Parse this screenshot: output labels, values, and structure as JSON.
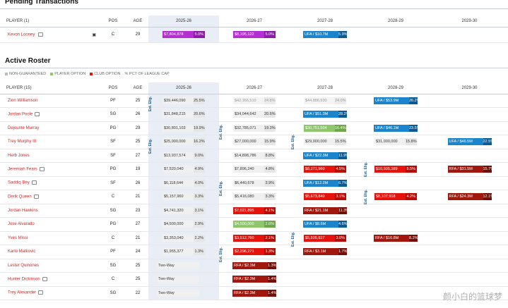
{
  "pending": {
    "title": "Pending Transactions",
    "headers": {
      "player": "PLAYER (1)",
      "pos": "POS",
      "age": "AGE",
      "y1": "2025-26",
      "y2": "2026-27",
      "y3": "2027-28",
      "y4": "2028-29",
      "y5": "2029-30"
    },
    "row": {
      "name": "Kevon Looney",
      "pos": "C",
      "age": "29",
      "y1": {
        "amt": "$7,804,878",
        "pct": "5.0%"
      },
      "y2": {
        "amt": "$8,195,122",
        "pct": "5.0%"
      },
      "y3": {
        "amt": "UFA / $10.7M",
        "pct": "5.9%"
      }
    }
  },
  "roster": {
    "title": "Active Roster",
    "legend": {
      "non_guaranteed": "NON-GUARANTEED",
      "player_option": "PLAYER OPTION",
      "club_option": "CLUB OPTION",
      "pct": "% PCT OF LEAGUE CAP"
    },
    "headers": {
      "player": "PLAYER (15)",
      "pos": "POS",
      "age": "AGE",
      "y1": "2025-26",
      "y2": "2026-27",
      "y3": "2027-28",
      "y4": "2028-29",
      "y5": "2029-30"
    },
    "ext_label": "Ext. Elig.",
    "rows": [
      {
        "name": "Zion Williamson",
        "icon": false,
        "pos": "PF",
        "age": "25",
        "y1": {
          "amt": "$39,446,090",
          "pct": "25.5%",
          "style": "gray"
        },
        "y2": {
          "amt": "$42,166,510",
          "pct": "24.8%",
          "style": "muted"
        },
        "y3": {
          "amt": "$44,886,930",
          "pct": "24.0%",
          "style": "muted"
        },
        "y4": {
          "amt": "UFA / $53.9M",
          "pct": "26.2%",
          "style": "blue"
        },
        "y5": null
      },
      {
        "name": "Jordan Poole",
        "icon": true,
        "pos": "SG",
        "age": "26",
        "y1": {
          "amt": "$31,848,215",
          "pct": "20.6%",
          "style": "gray"
        },
        "y2": {
          "amt": "$34,044,642",
          "pct": "20.6%",
          "style": "gray"
        },
        "y3": {
          "amt": "UFA / $51.3M",
          "pct": "28.2%",
          "style": "blue"
        },
        "y4": null,
        "y5": null
      },
      {
        "name": "Dejounte Murray",
        "icon": false,
        "pos": "PG",
        "age": "29",
        "y1": {
          "amt": "$30,801,103",
          "pct": "19.9%",
          "style": "gray"
        },
        "y2": {
          "amt": "$32,785,071",
          "pct": "19.3%",
          "style": "gray"
        },
        "y3": {
          "amt": "$30,751,504",
          "pct": "16.4%",
          "style": "green"
        },
        "y4": {
          "amt": "UFA / $46.1M",
          "pct": "23.5%",
          "style": "blue"
        },
        "y5": null
      },
      {
        "name": "Trey Murphy III",
        "icon": false,
        "pos": "SF",
        "age": "25",
        "y1": {
          "amt": "$25,000,000",
          "pct": "16.2%",
          "style": "gray"
        },
        "y2": {
          "amt": "$27,000,000",
          "pct": "15.9%",
          "style": "gray"
        },
        "y3": {
          "amt": "$29,000,000",
          "pct": "15.5%",
          "style": "gray"
        },
        "y4": {
          "amt": "$31,000,000",
          "pct": "15.8%",
          "style": "gray"
        },
        "y5": {
          "amt": "UFA / $46.5M",
          "pct": "22.5%",
          "style": "blue"
        }
      },
      {
        "name": "Herb Jones",
        "icon": false,
        "pos": "SF",
        "age": "27",
        "y1": {
          "amt": "$13,937,574",
          "pct": "9.0%",
          "style": "gray"
        },
        "y2": {
          "amt": "$14,898,786",
          "pct": "8.8%",
          "style": "gray"
        },
        "y3": {
          "amt": "UFA / $22.3M",
          "pct": "11.9%",
          "style": "blue"
        },
        "y4": null,
        "y5": null
      },
      {
        "name": "Jeremiah Fears",
        "icon": true,
        "pos": "PG",
        "age": "19",
        "y1": {
          "amt": "$7,520,040",
          "pct": "4.9%",
          "style": "gray"
        },
        "y2": {
          "amt": "$7,896,240",
          "pct": "4.8%",
          "style": "gray"
        },
        "y3": {
          "amt": "$8,271,960",
          "pct": "4.5%",
          "style": "red"
        },
        "y4": {
          "amt": "$10,505,389",
          "pct": "5.5%",
          "style": "red"
        },
        "y5": {
          "amt": "RFA / $31.5M",
          "pct": "15.7%",
          "style": "rfa"
        }
      },
      {
        "name": "Saddiq Bey",
        "icon": true,
        "pos": "SF",
        "age": "26",
        "y1": {
          "amt": "$6,118,644",
          "pct": "4.0%",
          "style": "gray"
        },
        "y2": {
          "amt": "$6,440,678",
          "pct": "3.9%",
          "style": "gray"
        },
        "y3": {
          "amt": "UFA / $12.2M",
          "pct": "6.7%",
          "style": "blue"
        },
        "y4": null,
        "y5": null
      },
      {
        "name": "Derik Queen",
        "icon": true,
        "pos": "C",
        "age": "21",
        "y1": {
          "amt": "$5,157,960",
          "pct": "3.3%",
          "style": "gray"
        },
        "y2": {
          "amt": "$5,416,080",
          "pct": "3.3%",
          "style": "gray"
        },
        "y3": {
          "amt": "$5,673,840",
          "pct": "3.1%",
          "style": "red"
        },
        "y4": {
          "amt": "$8,107,918",
          "pct": "4.2%",
          "style": "red"
        },
        "y5": {
          "amt": "RFA / $24.3M",
          "pct": "12.1%",
          "style": "rfa"
        }
      },
      {
        "name": "Jordan Hawkins",
        "icon": false,
        "pos": "SG",
        "age": "23",
        "y1": {
          "amt": "$4,741,320",
          "pct": "3.1%",
          "style": "gray"
        },
        "y2": {
          "amt": "$7,021,895",
          "pct": "4.1%",
          "style": "red"
        },
        "y3": {
          "amt": "RFA / $21.1M",
          "pct": "11.3%",
          "style": "rfa"
        },
        "y4": null,
        "y5": null
      },
      {
        "name": "Jose Alvarado",
        "icon": false,
        "pos": "PG",
        "age": "27",
        "y1": {
          "amt": "$4,500,000",
          "pct": "2.9%",
          "style": "gray"
        },
        "y2": {
          "amt": "$4,500,000",
          "pct": "2.6%",
          "style": "green"
        },
        "y3": {
          "amt": "UFA / $8.6M",
          "pct": "4.6%",
          "style": "blue"
        },
        "y4": null,
        "y5": null
      },
      {
        "name": "Yves Missi",
        "icon": false,
        "pos": "C",
        "age": "21",
        "y1": {
          "amt": "$3,353,040",
          "pct": "2.2%",
          "style": "gray"
        },
        "y2": {
          "amt": "$3,512,760",
          "pct": "2.1%",
          "style": "red"
        },
        "y3": {
          "amt": "$5,595,827",
          "pct": "3.0%",
          "style": "red"
        },
        "y4": {
          "amt": "RFA / $16.8M",
          "pct": "8.2%",
          "style": "rfa"
        },
        "y5": null
      },
      {
        "name": "Karlo Matkovic",
        "icon": false,
        "pos": "PF",
        "age": "24",
        "y1": {
          "amt": "$1,955,377",
          "pct": "1.3%",
          "style": "gray"
        },
        "y2": {
          "amt": "$2,296,271",
          "pct": "1.3%",
          "style": "red"
        },
        "y3": {
          "amt": "RFA / $3.1M",
          "pct": "1.7%",
          "style": "rfa"
        },
        "y4": null,
        "y5": null
      },
      {
        "name": "Lester Quinones",
        "icon": false,
        "pos": "SG",
        "age": "25",
        "y1": {
          "amt": "Two-Way",
          "pct": "",
          "style": "tw"
        },
        "y2": {
          "amt": "RFA / $2.3M",
          "pct": "1.3%",
          "style": "rfa"
        },
        "y3": null,
        "y4": null,
        "y5": null
      },
      {
        "name": "Hunter Dickinson",
        "icon": true,
        "pos": "C",
        "age": "25",
        "y1": {
          "amt": "Two-Way",
          "pct": "",
          "style": "tw"
        },
        "y2": {
          "amt": "RFA / $2.3M",
          "pct": "1.4%",
          "style": "rfa"
        },
        "y3": null,
        "y4": null,
        "y5": null
      },
      {
        "name": "Trey Alexander",
        "icon": true,
        "pos": "SG",
        "age": "22",
        "y1": {
          "amt": "Two-Way",
          "pct": "",
          "style": "tw"
        },
        "y2": {
          "amt": "RFA / $2.3M",
          "pct": "1.4%",
          "style": "rfa"
        },
        "y3": null,
        "y4": null,
        "y5": null
      }
    ]
  },
  "watermark": "颜小白的篮球梦",
  "colors": {
    "player_name": "#c62828",
    "current_year_bg": "#e9edf5",
    "club_option": "#e5130c",
    "player_option": "#8fc66b",
    "ufa": "#1a85cc",
    "rfa": "#a1160d",
    "pending": "#b32fd1"
  }
}
